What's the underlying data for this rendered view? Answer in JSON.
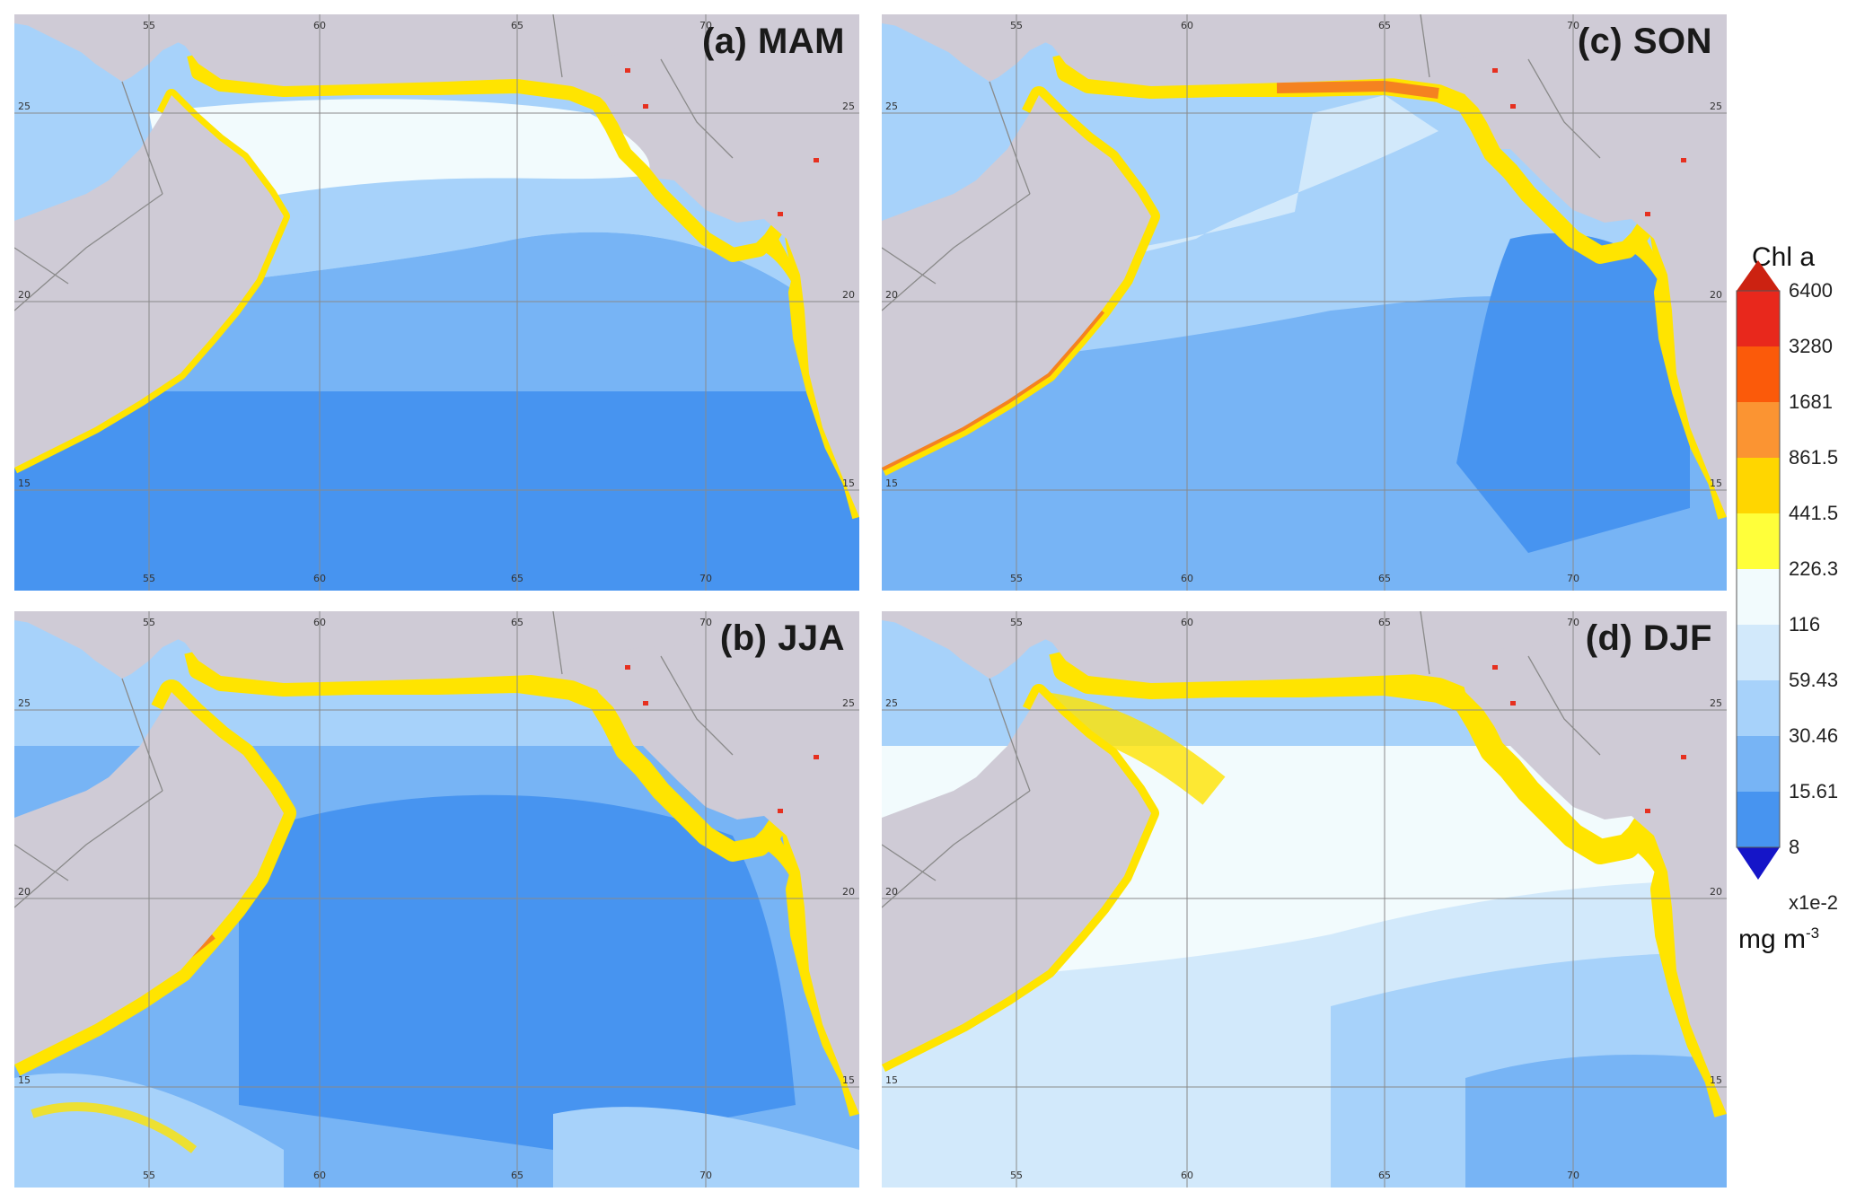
{
  "panels": [
    {
      "id": "a",
      "title": "(a) MAM",
      "season": "MAM",
      "pos": "top-left"
    },
    {
      "id": "b",
      "title": "(b) JJA",
      "season": "JJA",
      "pos": "bottom-left"
    },
    {
      "id": "c",
      "title": "(c) SON",
      "season": "SON",
      "pos": "top-right"
    },
    {
      "id": "d",
      "title": "(d) DJF",
      "season": "DJF",
      "pos": "bottom-right"
    }
  ],
  "map_ticks": {
    "lon": [
      "55",
      "60",
      "65",
      "70"
    ],
    "lat": [
      "25",
      "20",
      "15"
    ]
  },
  "legend": {
    "title": "Chl a",
    "unit_base": "mg m",
    "unit_exp": "-3",
    "labels": [
      "6400",
      "3280",
      "1681",
      "861.5",
      "441.5",
      "226.3",
      "116",
      "59.43",
      "30.46",
      "15.61",
      "8",
      "x1e-2"
    ],
    "colors": [
      "#e8281c",
      "#fb5a0a",
      "#fb9432",
      "#ffd600",
      "#ffff3a",
      "#f2fbfd",
      "#d2e9fb",
      "#a7d2fa",
      "#77b4f5",
      "#4794f0"
    ],
    "over_color": "#cc2211",
    "under_color": "#1515c8"
  },
  "colors": {
    "land": "#cfcbd6",
    "yellow": "#ffe400",
    "orange": "#f58220",
    "red": "#e63020",
    "border": "#8a8a8a"
  }
}
